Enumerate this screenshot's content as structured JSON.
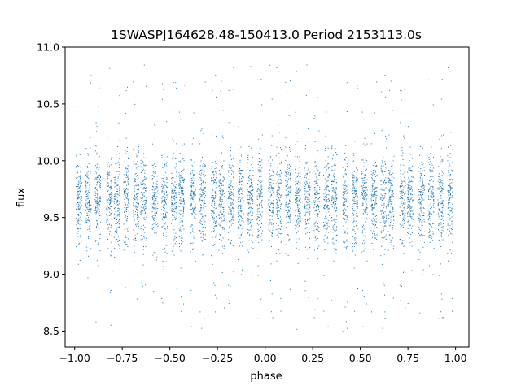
{
  "chart_data": {
    "type": "scatter",
    "title": "1SWASPJ164628.48-150413.0 Period 2153113.0s",
    "xlabel": "phase",
    "ylabel": "flux",
    "xlim": [
      -1.05,
      1.07
    ],
    "ylim": [
      8.36,
      11.0
    ],
    "x_ticks": [
      -1.0,
      -0.75,
      -0.5,
      -0.25,
      0.0,
      0.25,
      0.5,
      0.75,
      1.0
    ],
    "x_tick_labels": [
      "−1.00",
      "−0.75",
      "−0.50",
      "−0.25",
      "0.00",
      "0.25",
      "0.50",
      "0.75",
      "1.00"
    ],
    "y_ticks": [
      8.5,
      9.0,
      9.5,
      10.0,
      10.5,
      11.0
    ],
    "y_tick_labels": [
      "8.5",
      "9.0",
      "9.5",
      "10.0",
      "10.5",
      "11.0"
    ],
    "grid": false,
    "point_color": "#1f77b4",
    "clusters_phase": [
      -0.98,
      -0.93,
      -0.88,
      -0.82,
      -0.78,
      -0.73,
      -0.68,
      -0.64,
      -0.58,
      -0.53,
      -0.48,
      -0.44,
      -0.38,
      -0.33,
      -0.27,
      -0.23,
      -0.18,
      -0.13,
      -0.08,
      -0.03,
      0.03,
      0.07,
      0.12,
      0.17,
      0.22,
      0.27,
      0.32,
      0.36,
      0.42,
      0.47,
      0.52,
      0.57,
      0.62,
      0.66,
      0.72,
      0.76,
      0.82,
      0.87,
      0.92,
      0.97
    ],
    "flux_center": 9.65,
    "flux_spread": 0.2,
    "flux_range": [
      8.5,
      10.85
    ]
  }
}
